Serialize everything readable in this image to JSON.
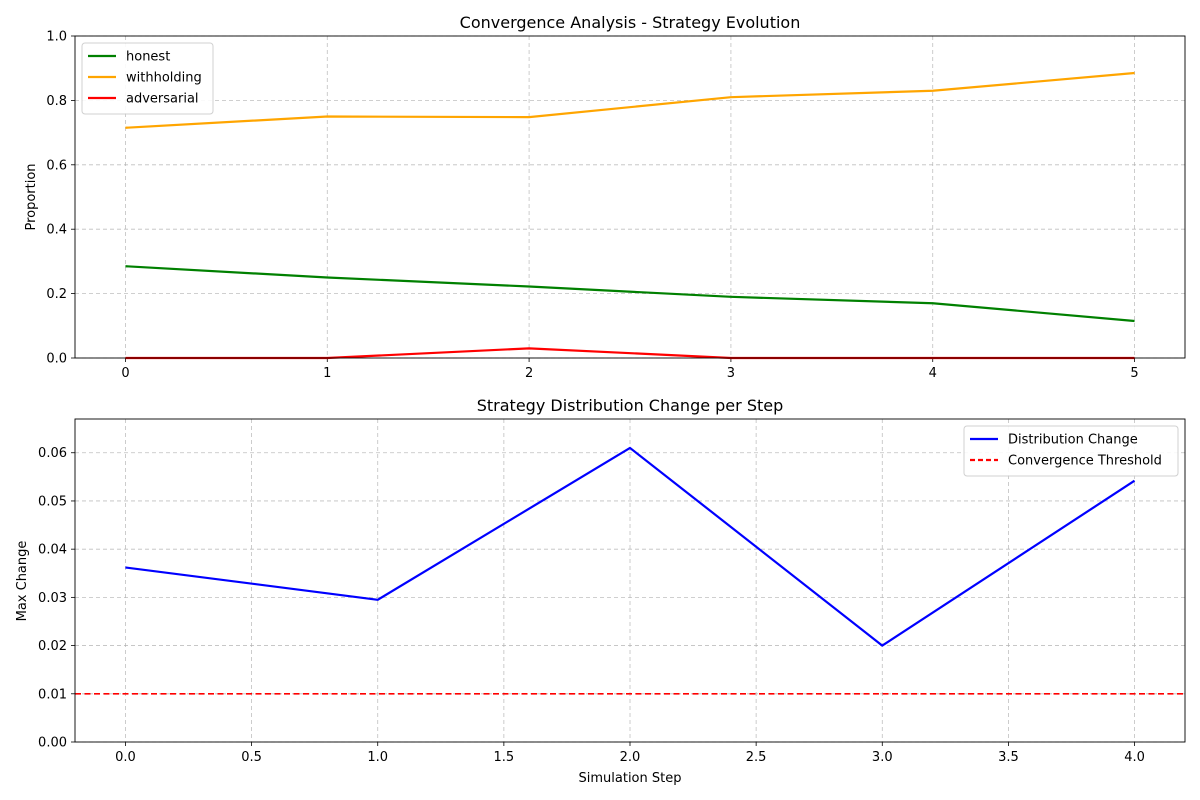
{
  "chart_data": [
    {
      "type": "line",
      "title": "Convergence Analysis - Strategy Evolution",
      "xlabel": "",
      "ylabel": "Proportion",
      "x": [
        0,
        1,
        2,
        3,
        4,
        5
      ],
      "xticks": [
        "0",
        "1",
        "2",
        "3",
        "4",
        "5"
      ],
      "xlim": [
        -0.25,
        5.25
      ],
      "ylim": [
        0,
        1
      ],
      "yticks": [
        "0.0",
        "0.2",
        "0.4",
        "0.6",
        "0.8",
        "1.0"
      ],
      "grid": true,
      "legend_position": "upper-left",
      "series": [
        {
          "name": "honest",
          "color": "#008000",
          "values": [
            0.285,
            0.25,
            0.222,
            0.19,
            0.17,
            0.115
          ]
        },
        {
          "name": "withholding",
          "color": "#FFA500",
          "values": [
            0.715,
            0.75,
            0.748,
            0.81,
            0.83,
            0.885
          ]
        },
        {
          "name": "adversarial",
          "color": "#FF0000",
          "values": [
            0.0,
            0.0,
            0.03,
            0.0,
            0.0,
            0.0
          ]
        }
      ]
    },
    {
      "type": "line",
      "title": "Strategy Distribution Change per Step",
      "xlabel": "Simulation Step",
      "ylabel": "Max Change",
      "x": [
        0,
        1,
        2,
        3,
        4
      ],
      "xticks": [
        "0.0",
        "0.5",
        "1.0",
        "1.5",
        "2.0",
        "2.5",
        "3.0",
        "3.5",
        "4.0"
      ],
      "xlim": [
        -0.2,
        4.2
      ],
      "ylim": [
        0,
        0.067
      ],
      "yticks": [
        "0.00",
        "0.01",
        "0.02",
        "0.03",
        "0.04",
        "0.05",
        "0.06"
      ],
      "grid": true,
      "legend_position": "upper-right",
      "series": [
        {
          "name": "Distribution Change",
          "color": "#0000FF",
          "values": [
            0.0362,
            0.0295,
            0.061,
            0.02,
            0.0542
          ]
        }
      ],
      "threshold": {
        "name": "Convergence Threshold",
        "color": "#FF0000",
        "value": 0.01
      }
    }
  ]
}
